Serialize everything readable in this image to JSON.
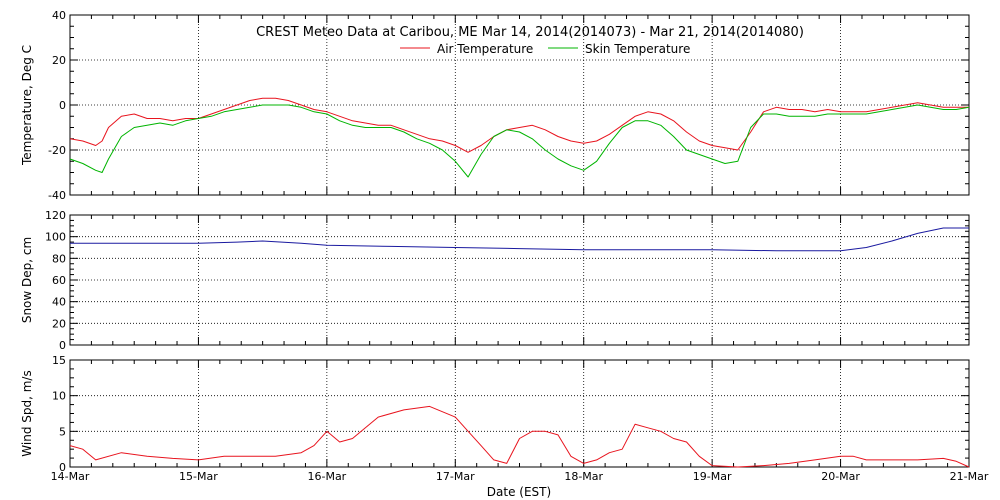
{
  "chart_data": {
    "type": "line",
    "title": "CREST Meteo Data at Caribou, ME   Mar 14, 2014(2014073) - Mar 21, 2014(2014080)",
    "xlabel": "Date (EST)",
    "x_ticks": [
      "14-Mar",
      "15-Mar",
      "16-Mar",
      "17-Mar",
      "18-Mar",
      "19-Mar",
      "20-Mar",
      "21-Mar"
    ],
    "xlim": [
      0,
      7
    ],
    "grid": true,
    "legend_position": "top-center",
    "panels": [
      {
        "id": "temperature",
        "ylabel": "Temperature, Deg C",
        "ylim": [
          -40,
          40
        ],
        "yticks": [
          -40,
          -20,
          0,
          20,
          40
        ],
        "series": [
          {
            "name": "Air Temperature",
            "color": "#e8141e",
            "x": [
              0,
              0.1,
              0.2,
              0.25,
              0.3,
              0.4,
              0.5,
              0.6,
              0.7,
              0.8,
              0.9,
              1.0,
              1.1,
              1.2,
              1.3,
              1.4,
              1.5,
              1.6,
              1.7,
              1.8,
              1.9,
              2.0,
              2.1,
              2.2,
              2.3,
              2.4,
              2.5,
              2.6,
              2.7,
              2.8,
              2.9,
              3.0,
              3.1,
              3.2,
              3.3,
              3.4,
              3.5,
              3.6,
              3.7,
              3.8,
              3.9,
              4.0,
              4.1,
              4.2,
              4.3,
              4.4,
              4.5,
              4.6,
              4.7,
              4.8,
              4.9,
              5.0,
              5.1,
              5.2,
              5.3,
              5.4,
              5.5,
              5.6,
              5.7,
              5.8,
              5.9,
              6.0,
              6.1,
              6.2,
              6.3,
              6.4,
              6.5,
              6.6,
              6.7,
              6.8,
              6.9,
              7.0
            ],
            "values": [
              -15,
              -16,
              -18,
              -16,
              -10,
              -5,
              -4,
              -6,
              -6,
              -7,
              -6,
              -6,
              -4,
              -2,
              0,
              2,
              3,
              3,
              2,
              0,
              -2,
              -3,
              -5,
              -7,
              -8,
              -9,
              -9,
              -11,
              -13,
              -15,
              -16,
              -18,
              -21,
              -18,
              -14,
              -11,
              -10,
              -9,
              -11,
              -14,
              -16,
              -17,
              -16,
              -13,
              -9,
              -5,
              -3,
              -4,
              -7,
              -12,
              -16,
              -18,
              -19,
              -20,
              -12,
              -3,
              -1,
              -2,
              -2,
              -3,
              -2,
              -3,
              -3,
              -3,
              -2,
              -1,
              0,
              1,
              0,
              -1,
              -1,
              -1
            ]
          },
          {
            "name": "Skin Temperature",
            "color": "#00b400",
            "x": [
              0,
              0.1,
              0.2,
              0.25,
              0.3,
              0.4,
              0.5,
              0.6,
              0.7,
              0.8,
              0.9,
              1.0,
              1.1,
              1.2,
              1.3,
              1.4,
              1.5,
              1.6,
              1.7,
              1.8,
              1.9,
              2.0,
              2.1,
              2.2,
              2.3,
              2.4,
              2.5,
              2.6,
              2.7,
              2.8,
              2.9,
              3.0,
              3.1,
              3.2,
              3.3,
              3.4,
              3.5,
              3.6,
              3.7,
              3.8,
              3.9,
              4.0,
              4.1,
              4.2,
              4.3,
              4.4,
              4.5,
              4.6,
              4.7,
              4.8,
              4.9,
              5.0,
              5.1,
              5.2,
              5.3,
              5.4,
              5.5,
              5.6,
              5.7,
              5.8,
              5.9,
              6.0,
              6.1,
              6.2,
              6.3,
              6.4,
              6.5,
              6.6,
              6.7,
              6.8,
              6.9,
              7.0
            ],
            "values": [
              -24,
              -26,
              -29,
              -30,
              -24,
              -14,
              -10,
              -9,
              -8,
              -9,
              -7,
              -6,
              -5,
              -3,
              -2,
              -1,
              0,
              0,
              0,
              -1,
              -3,
              -4,
              -7,
              -9,
              -10,
              -10,
              -10,
              -12,
              -15,
              -17,
              -20,
              -25,
              -32,
              -22,
              -14,
              -11,
              -12,
              -15,
              -20,
              -24,
              -27,
              -29,
              -25,
              -17,
              -10,
              -7,
              -7,
              -9,
              -14,
              -20,
              -22,
              -24,
              -26,
              -25,
              -10,
              -4,
              -4,
              -5,
              -5,
              -5,
              -4,
              -4,
              -4,
              -4,
              -3,
              -2,
              -1,
              0,
              -1,
              -2,
              -2,
              -1
            ]
          }
        ]
      },
      {
        "id": "snow",
        "ylabel": "Snow Dep, cm",
        "ylim": [
          0,
          120
        ],
        "yticks": [
          0,
          20,
          40,
          60,
          80,
          100,
          120
        ],
        "series": [
          {
            "name": "",
            "color": "#1a1aa0",
            "x": [
              0,
              0.5,
              1.0,
              1.3,
              1.5,
              1.8,
              2.0,
              2.5,
              3.0,
              3.5,
              4.0,
              4.5,
              5.0,
              5.5,
              6.0,
              6.2,
              6.4,
              6.6,
              6.8,
              7.0
            ],
            "values": [
              94,
              94,
              94,
              95,
              96,
              94,
              92,
              91,
              90,
              89,
              88,
              88,
              88,
              87,
              87,
              90,
              96,
              103,
              108,
              108
            ]
          }
        ]
      },
      {
        "id": "wind",
        "ylabel": "Wind Spd, m/s",
        "ylim": [
          0,
          15
        ],
        "yticks": [
          0,
          5,
          10,
          15
        ],
        "series": [
          {
            "name": "",
            "color": "#e8141e",
            "x": [
              0,
              0.1,
              0.2,
              0.4,
              0.6,
              0.8,
              1.0,
              1.2,
              1.4,
              1.6,
              1.8,
              1.9,
              2.0,
              2.1,
              2.2,
              2.3,
              2.4,
              2.6,
              2.8,
              3.0,
              3.1,
              3.2,
              3.3,
              3.4,
              3.5,
              3.6,
              3.7,
              3.8,
              3.9,
              4.0,
              4.1,
              4.2,
              4.3,
              4.4,
              4.5,
              4.6,
              4.7,
              4.8,
              4.9,
              5.0,
              5.2,
              5.4,
              5.6,
              5.8,
              6.0,
              6.1,
              6.2,
              6.4,
              6.6,
              6.8,
              6.9,
              7.0
            ],
            "values": [
              3,
              2.5,
              1,
              2,
              1.5,
              1.2,
              1,
              1.5,
              1.5,
              1.5,
              2,
              3,
              5,
              3.5,
              4,
              5.5,
              7,
              8,
              8.5,
              7,
              5,
              3,
              1,
              0.5,
              4,
              5,
              5,
              4.5,
              1.5,
              0.5,
              1,
              2,
              2.5,
              6,
              5.5,
              5,
              4,
              3.5,
              1.5,
              0.2,
              0,
              0.2,
              0.5,
              1,
              1.5,
              1.5,
              1,
              1,
              1,
              1.2,
              0.8,
              0
            ]
          }
        ]
      }
    ]
  }
}
